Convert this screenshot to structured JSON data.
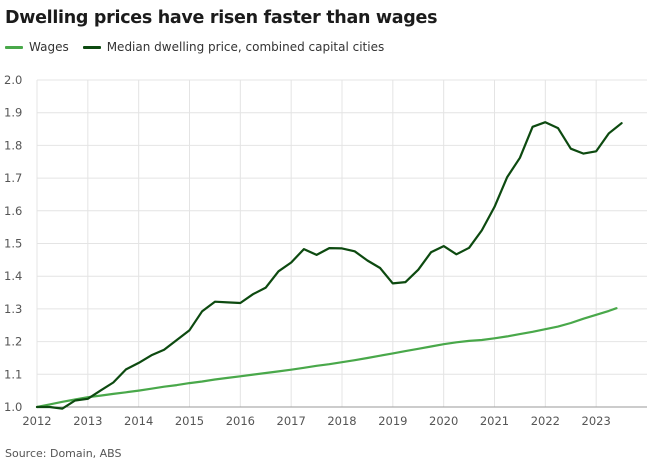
{
  "title": "Dwelling prices have risen faster than wages",
  "source": "Source: Domain, ABS",
  "chart_data": {
    "type": "line",
    "title": "Dwelling prices have risen faster than wages",
    "xlabel": "",
    "ylabel": "",
    "xlim": [
      2012,
      2024
    ],
    "ylim": [
      1.0,
      2.0
    ],
    "x_ticks": [
      2012,
      2013,
      2014,
      2015,
      2016,
      2017,
      2018,
      2019,
      2020,
      2021,
      2022,
      2023
    ],
    "y_ticks": [
      1.0,
      1.1,
      1.2,
      1.3,
      1.4,
      1.5,
      1.6,
      1.7,
      1.8,
      1.9,
      2.0
    ],
    "grid": true,
    "legend_position": "top-left",
    "series": [
      {
        "name": "Wages",
        "color": "#49a84a",
        "points": [
          [
            2012.0,
            1.0
          ],
          [
            2012.25,
            1.008
          ],
          [
            2012.5,
            1.016
          ],
          [
            2012.75,
            1.023
          ],
          [
            2013.0,
            1.03
          ],
          [
            2013.25,
            1.035
          ],
          [
            2013.5,
            1.04
          ],
          [
            2013.75,
            1.045
          ],
          [
            2014.0,
            1.05
          ],
          [
            2014.25,
            1.056
          ],
          [
            2014.5,
            1.062
          ],
          [
            2014.75,
            1.067
          ],
          [
            2015.0,
            1.073
          ],
          [
            2015.25,
            1.078
          ],
          [
            2015.5,
            1.084
          ],
          [
            2015.75,
            1.089
          ],
          [
            2016.0,
            1.094
          ],
          [
            2016.25,
            1.099
          ],
          [
            2016.5,
            1.104
          ],
          [
            2016.75,
            1.109
          ],
          [
            2017.0,
            1.114
          ],
          [
            2017.25,
            1.12
          ],
          [
            2017.5,
            1.126
          ],
          [
            2017.75,
            1.131
          ],
          [
            2018.0,
            1.137
          ],
          [
            2018.25,
            1.143
          ],
          [
            2018.5,
            1.15
          ],
          [
            2018.75,
            1.157
          ],
          [
            2019.0,
            1.164
          ],
          [
            2019.25,
            1.171
          ],
          [
            2019.5,
            1.178
          ],
          [
            2019.75,
            1.185
          ],
          [
            2020.0,
            1.192
          ],
          [
            2020.25,
            1.198
          ],
          [
            2020.5,
            1.202
          ],
          [
            2020.75,
            1.205
          ],
          [
            2021.0,
            1.21
          ],
          [
            2021.25,
            1.216
          ],
          [
            2021.5,
            1.223
          ],
          [
            2021.75,
            1.23
          ],
          [
            2022.0,
            1.238
          ],
          [
            2022.25,
            1.246
          ],
          [
            2022.5,
            1.257
          ],
          [
            2022.75,
            1.27
          ],
          [
            2023.0,
            1.282
          ],
          [
            2023.25,
            1.294
          ],
          [
            2023.4,
            1.302
          ]
        ]
      },
      {
        "name": "Median dwelling price, combined capital cities",
        "color": "#0d4a10",
        "points": [
          [
            2012.0,
            1.0
          ],
          [
            2012.25,
            1.0
          ],
          [
            2012.5,
            0.995
          ],
          [
            2012.75,
            1.02
          ],
          [
            2013.0,
            1.025
          ],
          [
            2013.25,
            1.05
          ],
          [
            2013.5,
            1.075
          ],
          [
            2013.75,
            1.115
          ],
          [
            2014.0,
            1.135
          ],
          [
            2014.25,
            1.158
          ],
          [
            2014.5,
            1.175
          ],
          [
            2014.75,
            1.205
          ],
          [
            2015.0,
            1.235
          ],
          [
            2015.25,
            1.293
          ],
          [
            2015.5,
            1.322
          ],
          [
            2015.75,
            1.32
          ],
          [
            2016.0,
            1.318
          ],
          [
            2016.25,
            1.345
          ],
          [
            2016.5,
            1.365
          ],
          [
            2016.75,
            1.415
          ],
          [
            2017.0,
            1.442
          ],
          [
            2017.25,
            1.483
          ],
          [
            2017.5,
            1.465
          ],
          [
            2017.75,
            1.486
          ],
          [
            2018.0,
            1.485
          ],
          [
            2018.25,
            1.476
          ],
          [
            2018.5,
            1.448
          ],
          [
            2018.75,
            1.425
          ],
          [
            2019.0,
            1.378
          ],
          [
            2019.25,
            1.382
          ],
          [
            2019.5,
            1.42
          ],
          [
            2019.75,
            1.473
          ],
          [
            2020.0,
            1.492
          ],
          [
            2020.25,
            1.467
          ],
          [
            2020.5,
            1.487
          ],
          [
            2020.75,
            1.54
          ],
          [
            2021.0,
            1.612
          ],
          [
            2021.25,
            1.703
          ],
          [
            2021.5,
            1.762
          ],
          [
            2021.75,
            1.857
          ],
          [
            2022.0,
            1.871
          ],
          [
            2022.25,
            1.853
          ],
          [
            2022.5,
            1.79
          ],
          [
            2022.75,
            1.775
          ],
          [
            2023.0,
            1.782
          ],
          [
            2023.25,
            1.837
          ],
          [
            2023.5,
            1.868
          ]
        ]
      }
    ]
  }
}
